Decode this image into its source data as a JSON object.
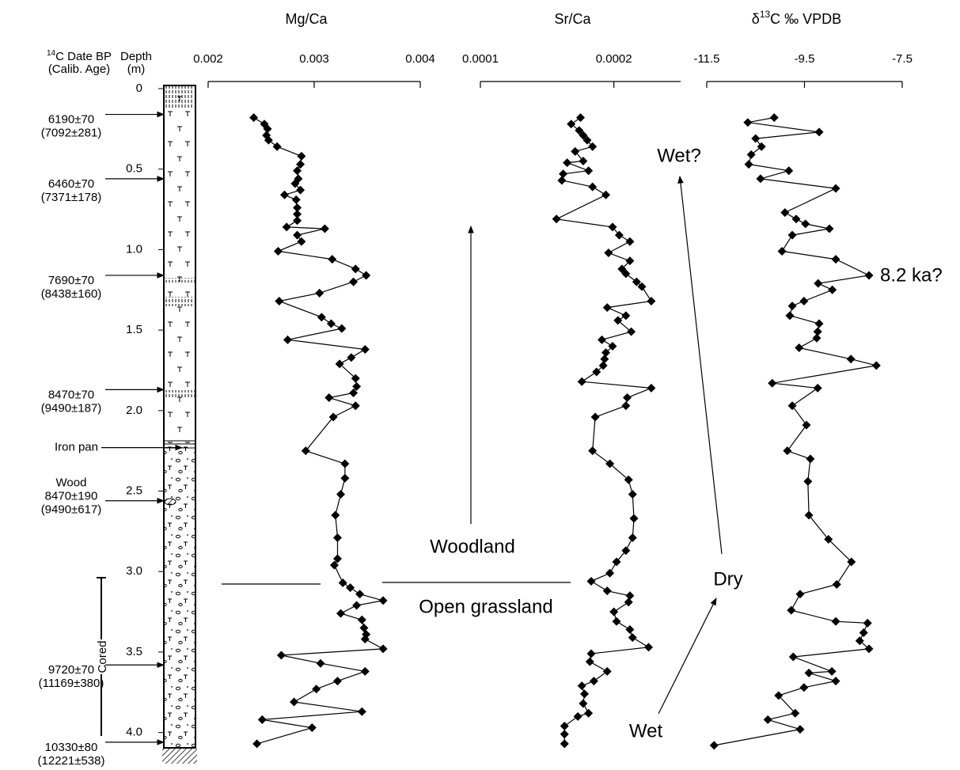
{
  "chart_data": [
    {
      "type": "line",
      "title": [
        "Mg/Ca"
      ],
      "color": "#000000",
      "marker": "diamond",
      "xlim": [
        0.002,
        0.004
      ],
      "xticks": [
        0.002,
        0.003,
        0.004
      ],
      "x": [
        0.00243,
        0.00253,
        0.00256,
        0.00255,
        0.00257,
        0.00265,
        0.00288,
        0.00287,
        0.00284,
        0.00285,
        0.00282,
        0.00287,
        0.00272,
        0.00283,
        0.00284,
        0.00284,
        0.00284,
        0.00274,
        0.0031,
        0.00284,
        0.00288,
        0.00266,
        0.00317,
        0.00339,
        0.00349,
        0.00337,
        0.00305,
        0.00267,
        0.00307,
        0.00316,
        0.00326,
        0.00275,
        0.00348,
        0.00335,
        0.00324,
        0.00339,
        0.0034,
        0.00337,
        0.00314,
        0.00339,
        0.00318,
        0.00292,
        0.00329,
        0.00329,
        0.00325,
        0.0032,
        0.00322,
        0.00322,
        0.00319,
        0.00327,
        0.00334,
        0.00343,
        0.00365,
        0.0034,
        0.00325,
        0.00345,
        0.00347,
        0.00349,
        0.00348,
        0.00365,
        0.00269,
        0.00306,
        0.00348,
        0.00322,
        0.00302,
        0.00281,
        0.00345,
        0.00251,
        0.00298,
        0.00246
      ],
      "y": [
        0.18,
        0.22,
        0.25,
        0.29,
        0.32,
        0.36,
        0.42,
        0.47,
        0.51,
        0.56,
        0.59,
        0.63,
        0.66,
        0.69,
        0.74,
        0.78,
        0.82,
        0.86,
        0.87,
        0.91,
        0.95,
        1.01,
        1.06,
        1.12,
        1.16,
        1.2,
        1.27,
        1.32,
        1.42,
        1.46,
        1.49,
        1.56,
        1.62,
        1.67,
        1.71,
        1.8,
        1.85,
        1.89,
        1.92,
        1.97,
        2.04,
        2.25,
        2.33,
        2.42,
        2.52,
        2.65,
        2.79,
        2.92,
        2.96,
        3.07,
        3.1,
        3.14,
        3.18,
        3.21,
        3.26,
        3.3,
        3.35,
        3.39,
        3.42,
        3.48,
        3.52,
        3.57,
        3.62,
        3.68,
        3.73,
        3.81,
        3.87,
        3.92,
        3.97,
        4.07
      ]
    },
    {
      "type": "line",
      "title": [
        "Sr/Ca"
      ],
      "color": "#000000",
      "marker": "diamond",
      "xlim": [
        0.0001,
        0.00025
      ],
      "xticks": [
        0.0001,
        0.0002
      ],
      "x": [
        0.000175,
        0.000168,
        0.000174,
        0.000177,
        0.00018,
        0.000184,
        0.000171,
        0.000177,
        0.000165,
        0.000181,
        0.000162,
        0.000161,
        0.000184,
        0.000194,
        0.000157,
        0.000199,
        0.000204,
        0.000212,
        0.000196,
        0.000212,
        0.000206,
        0.000209,
        0.000217,
        0.000221,
        0.000228,
        0.000195,
        0.000209,
        0.000203,
        0.000213,
        0.000191,
        0.000199,
        0.000194,
        0.000193,
        0.000192,
        0.000187,
        0.000176,
        0.000228,
        0.00021,
        0.000209,
        0.000186,
        0.000184,
        0.000197,
        0.000211,
        0.000214,
        0.000215,
        0.000214,
        0.000209,
        0.000202,
        0.000197,
        0.000183,
        0.000195,
        0.000212,
        0.000211,
        0.0002,
        0.000202,
        0.000212,
        0.000214,
        0.000226,
        0.000183,
        0.000182,
        0.000195,
        0.000185,
        0.000176,
        0.000178,
        0.000177,
        0.000181,
        0.000173,
        0.000163,
        0.000163,
        0.000163
      ],
      "y": [
        0.18,
        0.22,
        0.26,
        0.29,
        0.32,
        0.36,
        0.39,
        0.45,
        0.46,
        0.51,
        0.53,
        0.57,
        0.61,
        0.66,
        0.81,
        0.86,
        0.91,
        0.95,
        1.02,
        1.07,
        1.12,
        1.15,
        1.2,
        1.23,
        1.32,
        1.36,
        1.41,
        1.44,
        1.51,
        1.56,
        1.6,
        1.64,
        1.68,
        1.72,
        1.76,
        1.82,
        1.86,
        1.92,
        1.97,
        2.04,
        2.25,
        2.33,
        2.43,
        2.52,
        2.67,
        2.79,
        2.87,
        2.94,
        3.01,
        3.06,
        3.12,
        3.15,
        3.19,
        3.25,
        3.31,
        3.36,
        3.41,
        3.47,
        3.51,
        3.56,
        3.62,
        3.68,
        3.71,
        3.76,
        3.82,
        3.88,
        3.9,
        3.96,
        4.01,
        4.07
      ]
    },
    {
      "type": "line",
      "title": [
        "δ",
        "13",
        "C ‰ VPDB"
      ],
      "color": "#000000",
      "marker": "diamond",
      "xlim": [
        -11.5,
        -7.5
      ],
      "xticks": [
        -11.5,
        -9.5,
        -7.5
      ],
      "x": [
        -10.12,
        -10.66,
        -9.2,
        -10.5,
        -10.38,
        -10.59,
        -10.64,
        -9.82,
        -10.4,
        -8.86,
        -9.9,
        -9.67,
        -9.48,
        -8.99,
        -9.75,
        -9.96,
        -8.86,
        -8.18,
        -9.22,
        -8.93,
        -9.51,
        -9.75,
        -9.8,
        -9.2,
        -9.23,
        -9.25,
        -9.61,
        -8.55,
        -8.03,
        -10.16,
        -9.23,
        -9.75,
        -9.46,
        -9.85,
        -9.38,
        -9.43,
        -9.41,
        -9.01,
        -8.54,
        -8.84,
        -9.59,
        -9.77,
        -8.86,
        -8.21,
        -8.29,
        -8.37,
        -8.18,
        -9.73,
        -8.94,
        -9.41,
        -8.86,
        -9.51,
        -10.03,
        -9.69,
        -10.25,
        -9.59,
        -11.35
      ],
      "y": [
        0.18,
        0.21,
        0.27,
        0.31,
        0.36,
        0.41,
        0.47,
        0.51,
        0.56,
        0.62,
        0.77,
        0.81,
        0.84,
        0.87,
        0.91,
        1.01,
        1.06,
        1.16,
        1.21,
        1.25,
        1.32,
        1.35,
        1.41,
        1.46,
        1.51,
        1.55,
        1.61,
        1.68,
        1.72,
        1.83,
        1.86,
        1.97,
        2.09,
        2.25,
        2.3,
        2.44,
        2.65,
        2.8,
        2.94,
        3.08,
        3.14,
        3.24,
        3.31,
        3.32,
        3.38,
        3.43,
        3.48,
        3.53,
        3.62,
        3.63,
        3.68,
        3.72,
        3.77,
        3.88,
        3.92,
        3.98,
        4.08
      ]
    }
  ],
  "depth_axis": {
    "label": [
      "Depth",
      "(m)"
    ],
    "ylim": [
      0,
      4.1
    ],
    "inverted": true,
    "yticks": [
      0,
      0.5,
      {
        "value": 1,
        "label": "1.0"
      },
      1.5,
      {
        "value": 2,
        "label": "2.0"
      },
      2.5,
      {
        "value": 3,
        "label": "3.0"
      },
      3.5,
      {
        "value": 4,
        "label": "4.0"
      }
    ]
  },
  "dates": {
    "header": [
      "14",
      "C Date BP",
      "(Calib. Age)"
    ],
    "entries": [
      {
        "lines": [
          "6190±70",
          "(7092±281)"
        ],
        "depth": 0.16
      },
      {
        "lines": [
          "6460±70",
          "(7371±178)"
        ],
        "depth": 0.56
      },
      {
        "lines": [
          "7690±70",
          "(8438±160)"
        ],
        "depth": 1.16
      },
      {
        "lines": [
          "8470±70",
          "(9490±187)"
        ],
        "depth": 1.87
      },
      {
        "lines": [
          "Iron pan"
        ],
        "depth": 2.23
      },
      {
        "lines": [
          "Wood",
          "8470±190",
          "(9490±617)"
        ],
        "depth": 2.56
      },
      {
        "lines": [
          "9720±70",
          "(11169±380)"
        ],
        "depth": 3.58
      },
      {
        "lines": [
          "10330±80",
          "(12221±538)"
        ],
        "depth": 4.06
      }
    ]
  },
  "annotations": [
    "Woodland",
    "Open grassland",
    "Wet?",
    "Dry",
    "Wet",
    "8.2 ka?",
    "Cored"
  ]
}
